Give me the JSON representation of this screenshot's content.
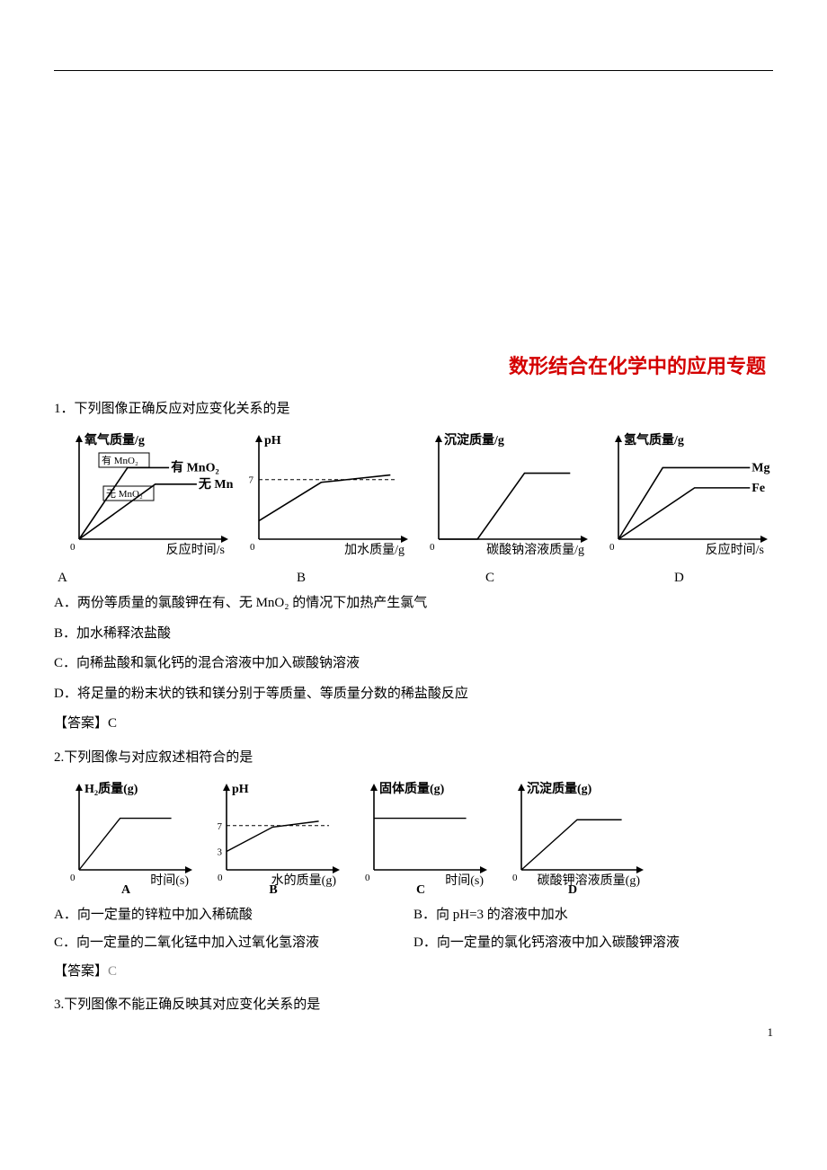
{
  "title": "数形结合在化学中的应用专题",
  "page_number": "1",
  "q1": {
    "stem": "1．下列图像正确反应对应变化关系的是",
    "labels": {
      "A": "A",
      "B": "B",
      "C": "C",
      "D": "D"
    },
    "charts": {
      "A": {
        "type": "line",
        "xlabel": "反应时间/s",
        "ylabel": "氧气质量/g",
        "series": [
          {
            "label": "有 MnO₂",
            "color": "#000000",
            "pts": [
              [
                0,
                0
              ],
              [
                35,
                78
              ],
              [
                65,
                78
              ]
            ]
          },
          {
            "label": "无 MnO₂",
            "color": "#000000",
            "pts": [
              [
                0,
                0
              ],
              [
                55,
                60
              ],
              [
                85,
                60
              ]
            ]
          }
        ],
        "line_width": 1.6
      },
      "B": {
        "type": "line",
        "xlabel": "加水质量/g",
        "ylabel": "pH",
        "ytick": 7,
        "series": [
          {
            "color": "#000000",
            "pts": [
              [
                0,
                20
              ],
              [
                45,
                62
              ],
              [
                95,
                70
              ]
            ]
          }
        ],
        "dashed_y": 65,
        "line_width": 1.6
      },
      "C": {
        "type": "line",
        "xlabel": "碳酸钠溶液质量/g",
        "ylabel": "沉淀质量/g",
        "series": [
          {
            "color": "#000000",
            "pts": [
              [
                0,
                0
              ],
              [
                28,
                0
              ],
              [
                62,
                72
              ],
              [
                95,
                72
              ]
            ]
          }
        ],
        "line_width": 1.6
      },
      "D": {
        "type": "line",
        "xlabel": "反应时间/s",
        "ylabel": "氢气质量/g",
        "series": [
          {
            "label": "Mg",
            "color": "#000000",
            "pts": [
              [
                0,
                0
              ],
              [
                32,
                78
              ],
              [
                95,
                78
              ]
            ]
          },
          {
            "label": "Fe",
            "color": "#000000",
            "pts": [
              [
                0,
                0
              ],
              [
                55,
                56
              ],
              [
                95,
                56
              ]
            ]
          }
        ],
        "line_width": 1.6
      }
    },
    "optA": "A．两份等质量的氯酸钾在有、无 MnO₂ 的情况下加热产生氯气",
    "optB": "B．加水稀释浓盐酸",
    "optC": "C．向稀盐酸和氯化钙的混合溶液中加入碳酸钠溶液",
    "optD": "D．将足量的粉末状的铁和镁分别于等质量、等质量分数的稀盐酸反应",
    "answer_open": "【答案】",
    "answer_val": "C"
  },
  "q2": {
    "stem": "2.下列图像与对应叙述相符合的是",
    "charts": {
      "A": {
        "type": "line",
        "xlabel": "时间(s)",
        "ylabel": "H₂质量(g)",
        "bottom": "A",
        "series": [
          {
            "color": "#000000",
            "pts": [
              [
                0,
                0
              ],
              [
                40,
                70
              ],
              [
                90,
                70
              ]
            ]
          }
        ],
        "line_width": 1.4
      },
      "B": {
        "type": "line",
        "xlabel": "水的质量(g)",
        "ylabel": "pH",
        "bottom": "B",
        "yticks": [
          3,
          7
        ],
        "series": [
          {
            "color": "#000000",
            "pts": [
              [
                0,
                25
              ],
              [
                45,
                58
              ],
              [
                90,
                66
              ]
            ]
          }
        ],
        "dashed_y": 60,
        "line_width": 1.4
      },
      "C": {
        "type": "line",
        "xlabel": "时间(s)",
        "ylabel": "固体质量(g)",
        "bottom": "C",
        "series": [
          {
            "color": "#000000",
            "pts": [
              [
                0,
                70
              ],
              [
                90,
                70
              ]
            ]
          }
        ],
        "line_width": 1.4
      },
      "D": {
        "type": "line",
        "xlabel": "碳酸钾溶液质量(g)",
        "ylabel": "沉淀质量(g)",
        "bottom": "D",
        "series": [
          {
            "color": "#000000",
            "pts": [
              [
                0,
                0
              ],
              [
                50,
                68
              ],
              [
                90,
                68
              ]
            ]
          }
        ],
        "line_width": 1.4
      }
    },
    "optA": "A．向一定量的锌粒中加入稀硫酸",
    "optB": "B．向 pH=3 的溶液中加水",
    "optC": "C．向一定量的二氧化锰中加入过氧化氢溶液",
    "optD": "D．向一定量的氯化钙溶液中加入碳酸钾溶液",
    "answer_open": "【答案】",
    "answer_val": "C"
  },
  "q3": {
    "stem": "3.下列图像不能正确反映其对应变化关系的是"
  },
  "chart_style": {
    "axis_color": "#000000",
    "text_size_large": 14,
    "text_size_small": 11,
    "background": "#ffffff"
  }
}
